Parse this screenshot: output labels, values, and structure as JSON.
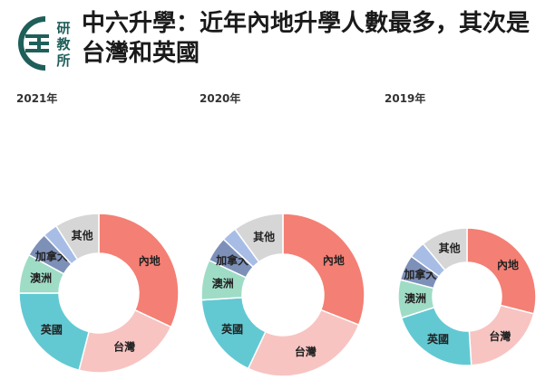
{
  "header": {
    "title": "中六升學：近年內地升學人數最多，其次是台灣和英國",
    "logo_text": [
      "研",
      "教",
      "所"
    ]
  },
  "colors": {
    "logo": "#1f5f5a",
    "內地": "#f47f74",
    "台灣": "#f7c4c2",
    "英國": "#62c9d3",
    "澳洲": "#9fdcc6",
    "加拿大": "#7d90b8",
    "其他小": "#a8bde6",
    "其他": "#d6d6d6"
  },
  "chart_data": [
    {
      "type": "pie",
      "title": "2021年",
      "categories": [
        "內地",
        "台灣",
        "英國",
        "澳洲",
        "加拿大",
        "",
        "其他"
      ],
      "values": [
        32,
        22,
        21,
        8,
        5,
        3,
        9
      ]
    },
    {
      "type": "pie",
      "title": "2020年",
      "categories": [
        "內地",
        "台灣",
        "英國",
        "澳洲",
        "加拿大",
        "",
        "其他"
      ],
      "values": [
        31,
        26,
        17,
        8,
        5,
        3,
        10
      ]
    },
    {
      "type": "pie",
      "title": "2019年",
      "categories": [
        "內地",
        "台灣",
        "英國",
        "澳洲",
        "加拿大",
        "",
        "其他"
      ],
      "values": [
        29,
        20,
        21,
        9,
        6,
        4,
        11
      ]
    }
  ]
}
